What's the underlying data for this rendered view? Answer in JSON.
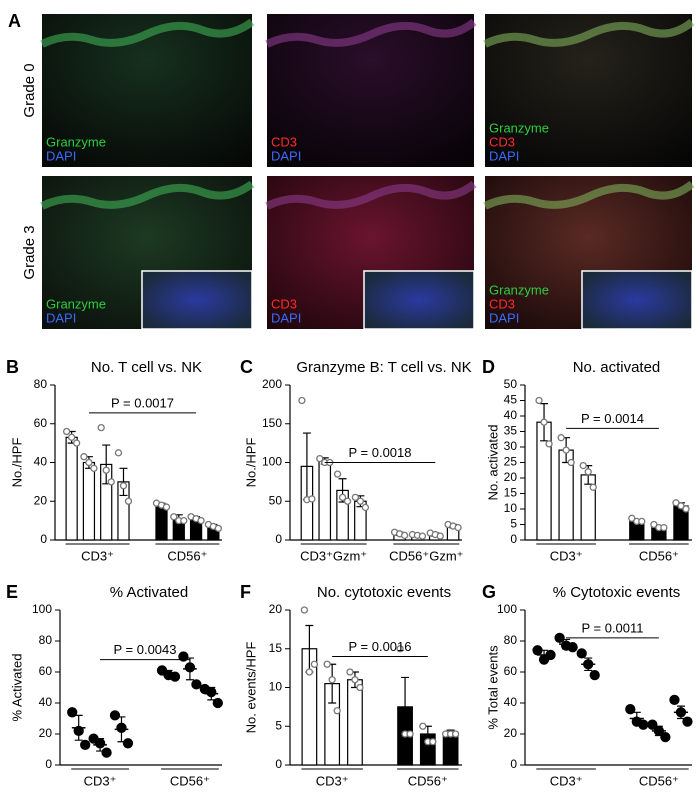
{
  "panel_a": {
    "label": "A",
    "rows": [
      "Grade 0",
      "Grade 3"
    ],
    "tile_labels": [
      [
        {
          "text": "Granzyme",
          "color": "#2ecc40"
        },
        {
          "text": "DAPI",
          "color": "#3a6bff"
        }
      ],
      [
        {
          "text": "CD3",
          "color": "#ff2a2a"
        },
        {
          "text": "DAPI",
          "color": "#3a6bff"
        }
      ],
      [
        {
          "text": "Granzyme",
          "color": "#2ecc40"
        },
        {
          "text": "CD3",
          "color": "#ff2a2a"
        },
        {
          "text": "DAPI",
          "color": "#3a6bff"
        }
      ]
    ]
  },
  "chart_data": [
    {
      "type": "bar",
      "panel": "B",
      "title": "No. T cell vs. NK",
      "ylabel": "No./HPF",
      "ylim": [
        0,
        80
      ],
      "yticks": [
        0,
        20,
        40,
        60,
        80
      ],
      "annotation": "P = 0.0017",
      "series": [
        {
          "name": "CD3⁺",
          "color": "#ffffff",
          "values": [
            53,
            40,
            39,
            30
          ],
          "errors": [
            3,
            3,
            10,
            7
          ],
          "points": [
            [
              56,
              53,
              50
            ],
            [
              43,
              40,
              37
            ],
            [
              58,
              36,
              30
            ],
            [
              45,
              28,
              20
            ]
          ]
        },
        {
          "name": "CD56⁺",
          "color": "#000000",
          "values": [
            18,
            11,
            11,
            7
          ],
          "errors": [
            1,
            2,
            1,
            1
          ],
          "points": [
            [
              19,
              18,
              17
            ],
            [
              12,
              10,
              10
            ],
            [
              12,
              11,
              10
            ],
            [
              8,
              7,
              6
            ]
          ]
        }
      ]
    },
    {
      "type": "bar",
      "panel": "C",
      "title": "Granzyme B: T cell vs. NK",
      "ylabel": "No./HPF",
      "ylim": [
        0,
        200
      ],
      "yticks": [
        0,
        50,
        100,
        150,
        200
      ],
      "annotation": "P = 0.0018",
      "series": [
        {
          "name": "CD3⁺Gzm⁺",
          "color": "#ffffff",
          "values": [
            95,
            102,
            64,
            50
          ],
          "errors": [
            43,
            4,
            15,
            7
          ],
          "points": [
            [
              180,
              52,
              53
            ],
            [
              105,
              100,
              100
            ],
            [
              85,
              55,
              50
            ],
            [
              55,
              50,
              42
            ]
          ]
        },
        {
          "name": "CD56⁺Gzm⁺",
          "color": "#ffffff",
          "values": [
            8,
            6,
            7,
            18
          ],
          "errors": [
            2,
            1,
            2,
            2
          ],
          "points": [
            [
              10,
              8,
              6
            ],
            [
              7,
              6,
              5
            ],
            [
              9,
              7,
              5
            ],
            [
              20,
              18,
              16
            ]
          ]
        }
      ]
    },
    {
      "type": "bar",
      "panel": "D",
      "title": "No. activated",
      "ylabel": "No. activated",
      "ylim": [
        0,
        50
      ],
      "yticks": [
        0,
        5,
        10,
        15,
        20,
        25,
        30,
        35,
        40,
        45,
        50
      ],
      "annotation": "P = 0.0014",
      "series": [
        {
          "name": "CD3⁺",
          "color": "#ffffff",
          "values": [
            38,
            29,
            21
          ],
          "errors": [
            6,
            4,
            3
          ],
          "points": [
            [
              45,
              38,
              31
            ],
            [
              33,
              29,
              25
            ],
            [
              24,
              22,
              17
            ]
          ]
        },
        {
          "name": "CD56⁺",
          "color": "#000000",
          "values": [
            6,
            4,
            11
          ],
          "errors": [
            0.5,
            0.5,
            1
          ],
          "points": [
            [
              7,
              6,
              6
            ],
            [
              5,
              4,
              4
            ],
            [
              12,
              11,
              10
            ]
          ]
        }
      ]
    },
    {
      "type": "dot",
      "panel": "E",
      "title": "% Activated",
      "ylabel": "% Activated",
      "ylim": [
        0,
        100
      ],
      "yticks": [
        0,
        20,
        40,
        60,
        80,
        100
      ],
      "annotation": "P = 0.0043",
      "series": [
        {
          "name": "CD3⁺",
          "color": "#000000",
          "values": [
            24,
            13,
            23
          ],
          "errors": [
            8,
            4,
            8
          ],
          "points": [
            [
              34,
              22,
              13
            ],
            [
              17,
              14,
              8
            ],
            [
              32,
              24,
              14
            ]
          ]
        },
        {
          "name": "CD56⁺",
          "color": "#000000",
          "values": [
            59,
            62,
            46
          ],
          "errors": [
            2,
            7,
            4
          ],
          "points": [
            [
              61,
              58,
              57
            ],
            [
              70,
              63,
              52
            ],
            [
              49,
              47,
              40
            ]
          ]
        }
      ]
    },
    {
      "type": "bar",
      "panel": "F",
      "title": "No. cytotoxic events",
      "ylabel": "No. events/HPF",
      "ylim": [
        0,
        20
      ],
      "yticks": [
        0,
        5,
        10,
        15,
        20
      ],
      "annotation": "P = 0.0016",
      "series": [
        {
          "name": "CD3⁺",
          "color": "#ffffff",
          "values": [
            15,
            10.5,
            11
          ],
          "errors": [
            3,
            2.5,
            1
          ],
          "points": [
            [
              20,
              12,
              13
            ],
            [
              13,
              11,
              7
            ],
            [
              12,
              11,
              10
            ]
          ]
        },
        {
          "name": "CD56⁺",
          "color": "#000000",
          "values": [
            7.5,
            4,
            4
          ],
          "errors": [
            3.8,
            1,
            0.5
          ],
          "points": [
            [
              15,
              4,
              4
            ],
            [
              5,
              3,
              3
            ],
            [
              4,
              4,
              4
            ]
          ]
        }
      ]
    },
    {
      "type": "dot",
      "panel": "G",
      "title": "% Cytotoxic events",
      "ylabel": "% Total events",
      "ylim": [
        0,
        100
      ],
      "yticks": [
        0,
        20,
        40,
        60,
        80,
        100
      ],
      "annotation": "P = 0.0011",
      "series": [
        {
          "name": "CD3⁺",
          "color": "#000000",
          "values": [
            71,
            78,
            65
          ],
          "errors": [
            3,
            3,
            4
          ],
          "points": [
            [
              74,
              68,
              71
            ],
            [
              82,
              77,
              76
            ],
            [
              72,
              65,
              58
            ]
          ]
        },
        {
          "name": "CD56⁺",
          "color": "#000000",
          "values": [
            30,
            22,
            34
          ],
          "errors": [
            4,
            3,
            4
          ],
          "points": [
            [
              36,
              28,
              26
            ],
            [
              26,
              22,
              18
            ],
            [
              42,
              34,
              28
            ]
          ]
        }
      ]
    }
  ]
}
